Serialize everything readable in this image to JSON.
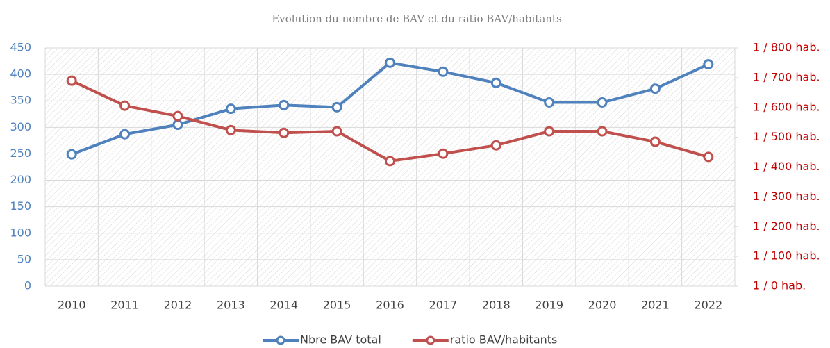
{
  "chart_data": {
    "type": "line",
    "title": "Evolution du nombre de BAV et du ratio BAV/habitants",
    "categories": [
      "2010",
      "2011",
      "2012",
      "2013",
      "2014",
      "2015",
      "2016",
      "2017",
      "2018",
      "2019",
      "2020",
      "2021",
      "2022"
    ],
    "series": [
      {
        "name": "Nbre BAV total",
        "color": "#4f81bd",
        "values": [
          249,
          287,
          305,
          335,
          342,
          338,
          422,
          405,
          384,
          347,
          347,
          373,
          419
        ]
      },
      {
        "name": "ratio BAV/habitants",
        "color": "#c0504d",
        "axis": "y2",
        "values": [
          690,
          606,
          571,
          524,
          515,
          520,
          420,
          445,
          473,
          520,
          520,
          485,
          434
        ]
      }
    ],
    "ylim": [
      0,
      450
    ],
    "yticks": [
      0,
      50,
      100,
      150,
      200,
      250,
      300,
      350,
      400,
      450
    ],
    "y2lim": [
      0,
      800
    ],
    "y2ticks": [
      {
        "value": 0,
        "label": "1 / 0 hab."
      },
      {
        "value": 100,
        "label": "1 / 100 hab."
      },
      {
        "value": 200,
        "label": "1 / 200 hab."
      },
      {
        "value": 300,
        "label": "1 / 300 hab."
      },
      {
        "value": 400,
        "label": "1 / 400 hab."
      },
      {
        "value": 500,
        "label": "1 / 500 hab."
      },
      {
        "value": 600,
        "label": "1 / 600 hab."
      },
      {
        "value": 700,
        "label": "1 / 700 hab."
      },
      {
        "value": 800,
        "label": "1 / 800 hab."
      }
    ],
    "grid": true,
    "legend": "bottom"
  }
}
